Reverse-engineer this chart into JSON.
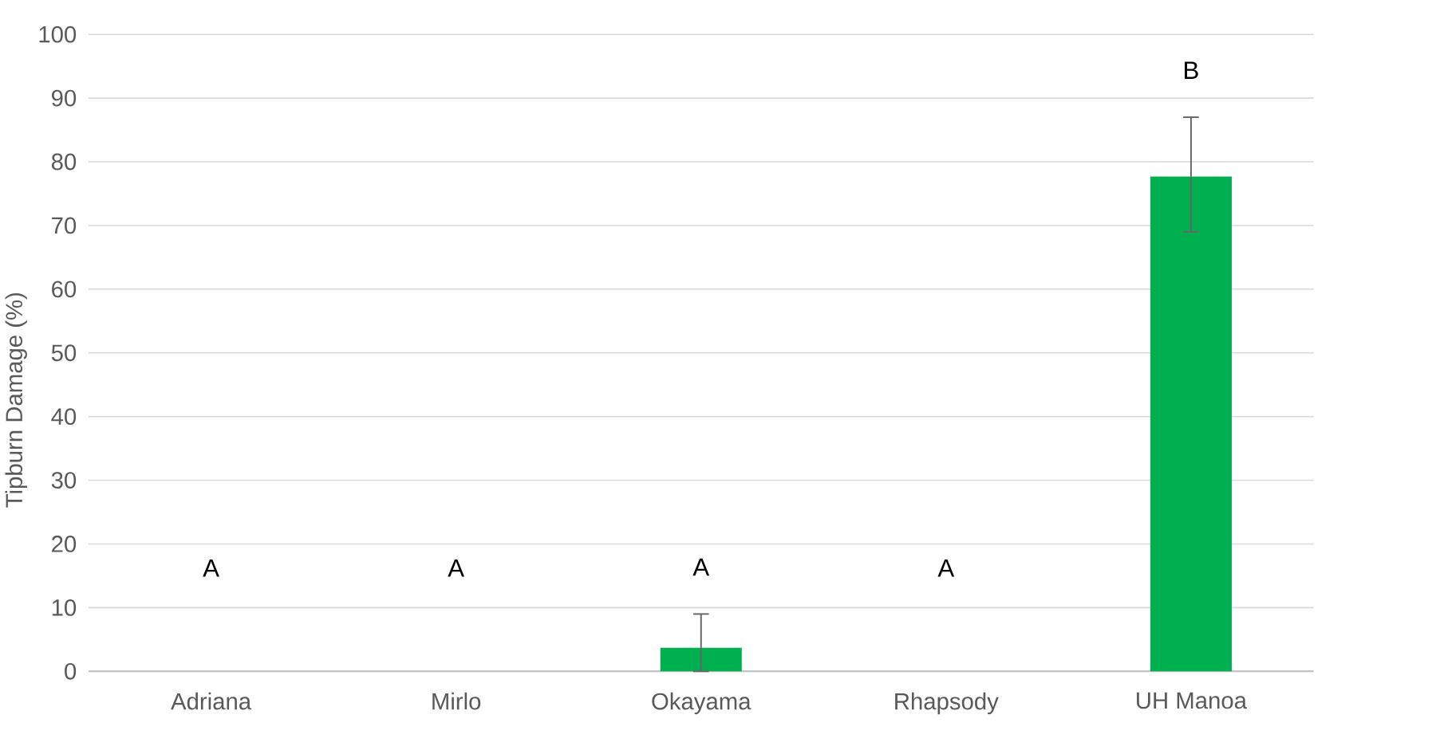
{
  "chart_data": {
    "type": "bar",
    "ylabel": "Tipburn Damage (%)",
    "categories": [
      "Adriana",
      "Mirlo",
      "Okayama",
      "Rhapsody",
      "UH Manoa"
    ],
    "values": [
      0,
      0,
      3.7,
      0,
      77.7
    ],
    "errors": [
      null,
      null,
      [
        0,
        9
      ],
      null,
      [
        69,
        87
      ]
    ],
    "color": "#00b050",
    "ylim": [
      0,
      100
    ],
    "yticks": [
      0,
      10,
      20,
      30,
      40,
      50,
      60,
      70,
      80,
      90,
      100
    ],
    "grid": "y",
    "annotations": [
      "A",
      "A",
      "A",
      "A",
      "B"
    ]
  }
}
